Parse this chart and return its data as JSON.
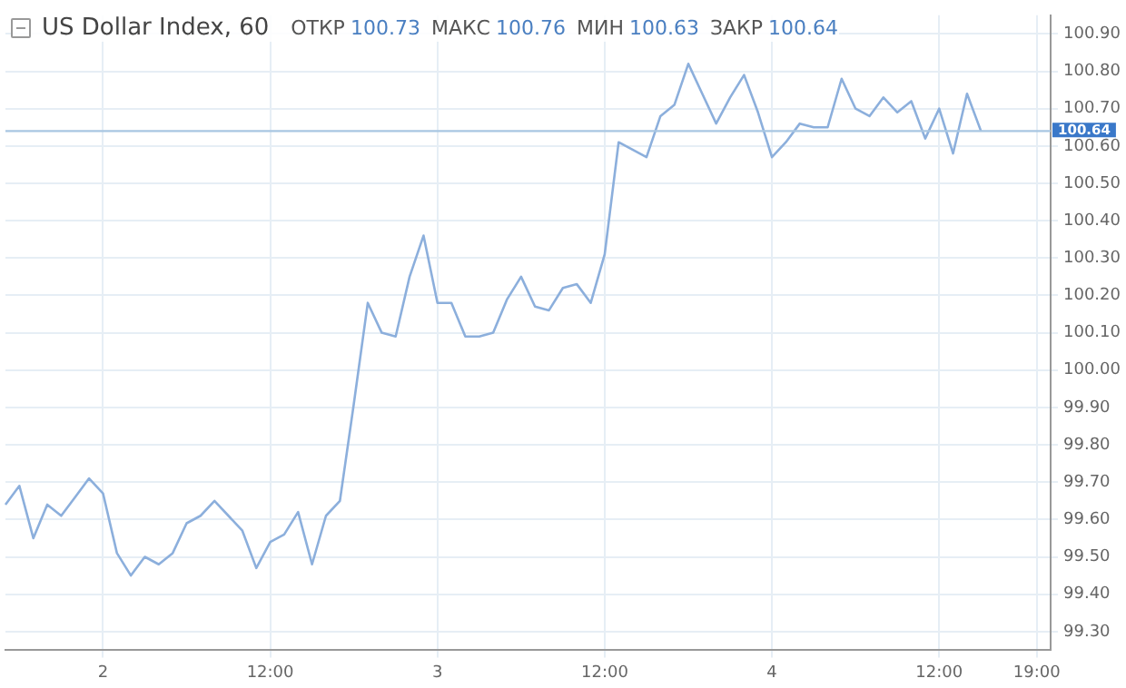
{
  "chart_data": {
    "type": "line",
    "title": "US Dollar Index, 60",
    "annotations": [
      "ОТКР 100.73",
      "МАКС 100.76",
      "МИН 100.63",
      "ЗАКР 100.64"
    ],
    "categories": [
      null,
      null,
      null,
      null,
      null,
      null,
      null,
      "2",
      null,
      null,
      null,
      null,
      null,
      null,
      null,
      null,
      null,
      null,
      null,
      "12:00",
      null,
      null,
      null,
      null,
      null,
      null,
      null,
      null,
      null,
      null,
      null,
      "3",
      null,
      null,
      null,
      null,
      null,
      null,
      null,
      null,
      null,
      null,
      null,
      "12:00",
      null,
      null,
      null,
      null,
      null,
      null,
      null,
      null,
      null,
      null,
      null,
      "4",
      null,
      null,
      null,
      null,
      null,
      null,
      null,
      null,
      null,
      null,
      null,
      "12:00",
      null,
      null,
      null,
      null,
      null,
      null,
      "19:00",
      null
    ],
    "series": [
      {
        "color": "#8cafdc",
        "values": [
          99.64,
          99.69,
          99.55,
          99.64,
          99.61,
          99.66,
          99.71,
          99.67,
          99.51,
          99.45,
          99.5,
          99.48,
          99.51,
          99.59,
          99.61,
          99.65,
          99.61,
          99.57,
          99.47,
          99.54,
          99.56,
          99.62,
          99.48,
          99.61,
          99.65,
          99.91,
          100.18,
          100.1,
          100.09,
          100.25,
          100.36,
          100.18,
          100.18,
          100.09,
          100.09,
          100.1,
          100.19,
          100.25,
          100.17,
          100.16,
          100.22,
          100.23,
          100.18,
          100.31,
          100.61,
          100.59,
          100.57,
          100.68,
          100.71,
          100.82,
          100.74,
          100.66,
          100.73,
          100.79,
          100.69,
          100.57,
          100.61,
          100.66,
          100.65,
          100.65,
          100.78,
          100.7,
          100.68,
          100.73,
          100.69,
          100.72,
          100.62,
          100.7,
          100.58,
          100.74,
          100.64,
          null,
          null,
          null,
          null,
          null
        ]
      }
    ],
    "ylim": [
      99.25,
      100.95
    ],
    "yticks": [
      {
        "value": 99.3,
        "label": "99.30"
      },
      {
        "value": 99.4,
        "label": "99.40"
      },
      {
        "value": 99.5,
        "label": "99.50"
      },
      {
        "value": 99.6,
        "label": "99.60"
      },
      {
        "value": 99.7,
        "label": "99.70"
      },
      {
        "value": 99.8,
        "label": "99.80"
      },
      {
        "value": 99.9,
        "label": "99.90"
      },
      {
        "value": 100,
        "label": "100.00"
      },
      {
        "value": 100.1,
        "label": "100.10"
      },
      {
        "value": 100.2,
        "label": "100.20"
      },
      {
        "value": 100.3,
        "label": "100.30"
      },
      {
        "value": 100.4,
        "label": "100.40"
      },
      {
        "value": 100.5,
        "label": "100.50"
      },
      {
        "value": 100.6,
        "label": "100.60"
      },
      {
        "value": 100.7,
        "label": "100.70"
      },
      {
        "value": 100.8,
        "label": "100.80"
      },
      {
        "value": 100.9,
        "label": "100.90"
      }
    ],
    "ref_lines": [
      {
        "axis": "y",
        "value": 100.64,
        "label": "100.64",
        "color": "#a8c6e2"
      }
    ],
    "grid": true,
    "legend": false,
    "marker": "none",
    "line_style": "solid"
  }
}
